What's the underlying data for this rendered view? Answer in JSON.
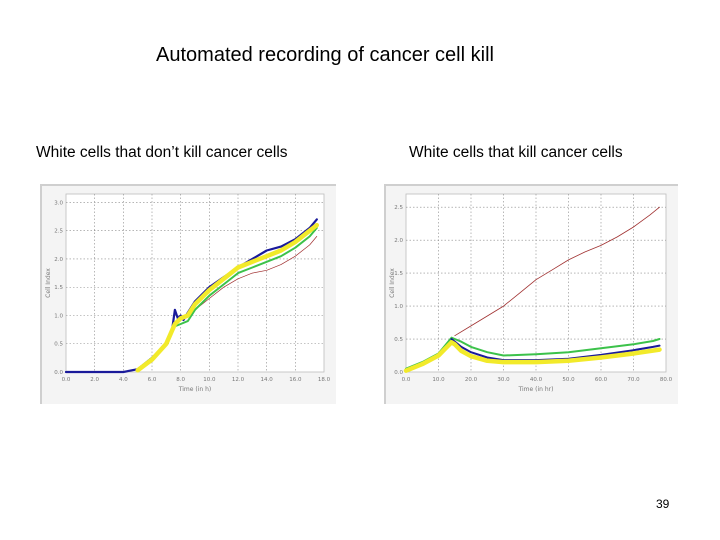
{
  "slide": {
    "title": "Automated recording of cancer cell kill",
    "page_number": "39"
  },
  "chart_data": [
    {
      "type": "line",
      "caption": "White cells that don’t kill cancer cells",
      "xlabel": "Time (in h)",
      "ylabel": "Cell Index",
      "x_ticks": [
        "0.0",
        "2.0",
        "4.0",
        "6.0",
        "8.0",
        "10.0",
        "12.0",
        "14.0",
        "16.0",
        "18.0"
      ],
      "y_ticks": [
        "0.0",
        "0.5",
        "1.0",
        "1.5",
        "2.0",
        "2.5",
        "3.0"
      ],
      "xlim": [
        0,
        18
      ],
      "ylim": [
        0,
        3.15
      ],
      "grid": true,
      "series": [
        {
          "name": "blue",
          "color": "#1a1a9a",
          "width": 2.2,
          "x": [
            0,
            2,
            4,
            5,
            6,
            7,
            7.4,
            7.6,
            7.8,
            8.0,
            8.2,
            8.5,
            9,
            10,
            11,
            12,
            13,
            14,
            15,
            16,
            17,
            17.5
          ],
          "y": [
            0,
            0,
            0,
            0.05,
            0.25,
            0.5,
            0.75,
            1.1,
            0.95,
            1.0,
            0.92,
            1.05,
            1.25,
            1.5,
            1.68,
            1.85,
            2.0,
            2.15,
            2.22,
            2.35,
            2.55,
            2.7
          ]
        },
        {
          "name": "dark red",
          "color": "#a03030",
          "width": 0.7,
          "x": [
            7.8,
            8.5,
            9,
            10,
            11,
            12,
            13,
            14,
            15,
            16,
            17,
            17.5
          ],
          "y": [
            0.9,
            1.0,
            1.1,
            1.3,
            1.5,
            1.65,
            1.75,
            1.8,
            1.9,
            2.05,
            2.25,
            2.4
          ]
        },
        {
          "name": "green",
          "color": "#3cc24a",
          "width": 2.0,
          "x": [
            5,
            6,
            7,
            7.5,
            8,
            8.5,
            9,
            10,
            11,
            12,
            13,
            14,
            15,
            16,
            17,
            17.5
          ],
          "y": [
            0.05,
            0.25,
            0.5,
            0.8,
            0.85,
            0.9,
            1.1,
            1.35,
            1.55,
            1.75,
            1.85,
            1.95,
            2.05,
            2.2,
            2.4,
            2.55
          ]
        },
        {
          "name": "yellow",
          "color": "#f2ea2a",
          "width": 4.5,
          "x": [
            5,
            6,
            7,
            7.6,
            8,
            8.5,
            9,
            10,
            11,
            12,
            13,
            14,
            15,
            16,
            17,
            17.5
          ],
          "y": [
            0.03,
            0.22,
            0.5,
            0.85,
            0.95,
            1.0,
            1.2,
            1.45,
            1.65,
            1.85,
            1.95,
            2.05,
            2.15,
            2.3,
            2.5,
            2.6
          ]
        }
      ]
    },
    {
      "type": "line",
      "caption": "White cells that kill cancer cells",
      "xlabel": "Time (in hr)",
      "ylabel": "Cell Index",
      "x_ticks": [
        "0.0",
        "10.0",
        "20.0",
        "30.0",
        "40.0",
        "50.0",
        "60.0",
        "70.0",
        "80.0"
      ],
      "y_ticks": [
        "0.0",
        "0.5",
        "1.0",
        "1.5",
        "2.0",
        "2.5"
      ],
      "xlim": [
        0,
        80
      ],
      "ylim": [
        0,
        2.7
      ],
      "grid": true,
      "series": [
        {
          "name": "dark red",
          "color": "#a03030",
          "width": 0.8,
          "x": [
            15,
            20,
            25,
            30,
            35,
            40,
            45,
            50,
            55,
            60,
            65,
            70,
            75,
            78
          ],
          "y": [
            0.55,
            0.7,
            0.85,
            1.0,
            1.2,
            1.4,
            1.55,
            1.7,
            1.82,
            1.92,
            2.05,
            2.2,
            2.38,
            2.5
          ]
        },
        {
          "name": "green",
          "color": "#3cc24a",
          "width": 2.0,
          "x": [
            0,
            5,
            10,
            14,
            15,
            17,
            20,
            25,
            30,
            40,
            50,
            60,
            70,
            76,
            78
          ],
          "y": [
            0.05,
            0.15,
            0.28,
            0.52,
            0.5,
            0.46,
            0.38,
            0.3,
            0.25,
            0.27,
            0.3,
            0.36,
            0.42,
            0.47,
            0.5
          ]
        },
        {
          "name": "blue",
          "color": "#1a1a9a",
          "width": 2.0,
          "x": [
            14,
            15,
            17,
            20,
            25,
            30,
            40,
            50,
            60,
            70,
            76,
            78
          ],
          "y": [
            0.5,
            0.46,
            0.38,
            0.3,
            0.22,
            0.18,
            0.18,
            0.2,
            0.26,
            0.33,
            0.38,
            0.4
          ]
        },
        {
          "name": "yellow",
          "color": "#f2ea2a",
          "width": 4.5,
          "x": [
            0,
            5,
            10,
            14,
            15,
            17,
            20,
            25,
            30,
            40,
            50,
            60,
            70,
            78
          ],
          "y": [
            0.02,
            0.12,
            0.25,
            0.45,
            0.42,
            0.32,
            0.24,
            0.17,
            0.15,
            0.15,
            0.17,
            0.22,
            0.28,
            0.34
          ]
        }
      ]
    }
  ]
}
